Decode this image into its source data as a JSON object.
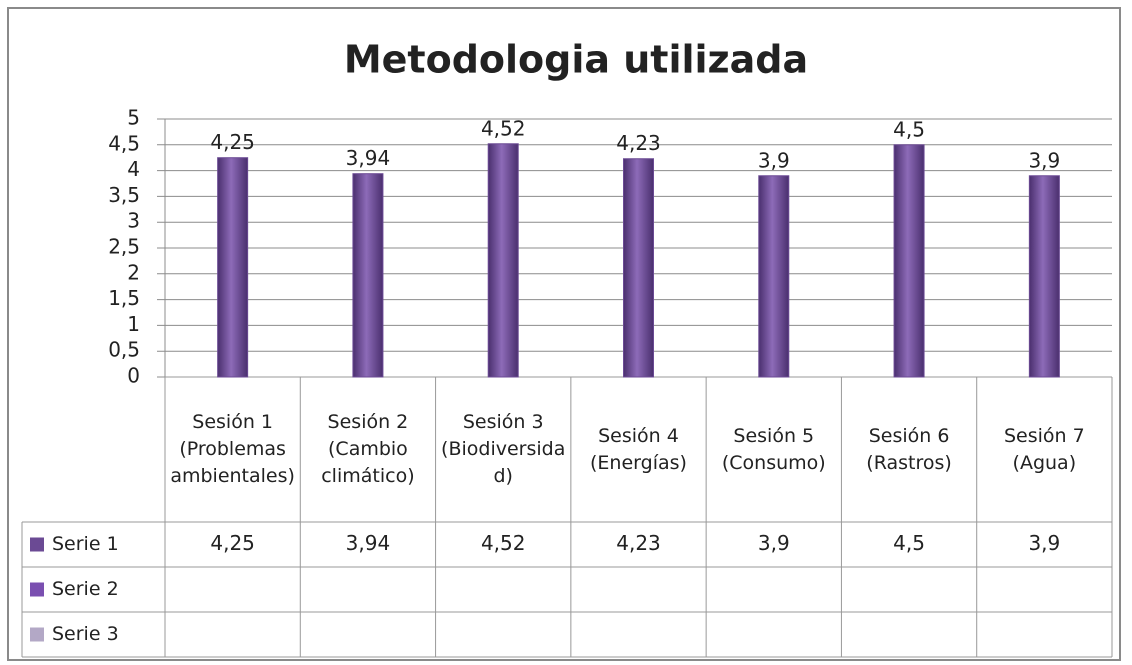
{
  "chart_data": {
    "type": "bar",
    "title": "Metodologia utilizada",
    "categories": [
      "Sesión 1 (Problemas ambientales)",
      "Sesión 2 (Cambio climático)",
      "Sesión 3 (Biodiversidad)",
      "Sesión 4 (Energías)",
      "Sesión 5 (Consumo)",
      "Sesión 6 (Rastros)",
      "Sesión 7 (Agua)"
    ],
    "series": [
      {
        "name": "Serie 1",
        "color": "#6b4a94",
        "values": [
          4.25,
          3.94,
          4.52,
          4.23,
          3.9,
          4.5,
          3.9
        ],
        "value_labels": [
          "4,25",
          "3,94",
          "4,52",
          "4,23",
          "3,9",
          "4,5",
          "3,9"
        ]
      },
      {
        "name": "Serie 2",
        "color": "#7a4fb0",
        "values": [
          null,
          null,
          null,
          null,
          null,
          null,
          null
        ]
      },
      {
        "name": "Serie 3",
        "color": "#b3a8c6",
        "values": [
          null,
          null,
          null,
          null,
          null,
          null,
          null
        ]
      }
    ],
    "ylim": [
      0,
      5
    ],
    "yticks": [
      0,
      {
        "value": 0.5,
        "label": "0,5"
      },
      1,
      {
        "value": 1.5,
        "label": "1,5"
      },
      2,
      {
        "value": 2.5,
        "label": "2,5"
      },
      3,
      {
        "value": 3.5,
        "label": "3,5"
      },
      4,
      {
        "value": 4.5,
        "label": "4,5"
      },
      5
    ],
    "grid": true,
    "data_table": true
  }
}
